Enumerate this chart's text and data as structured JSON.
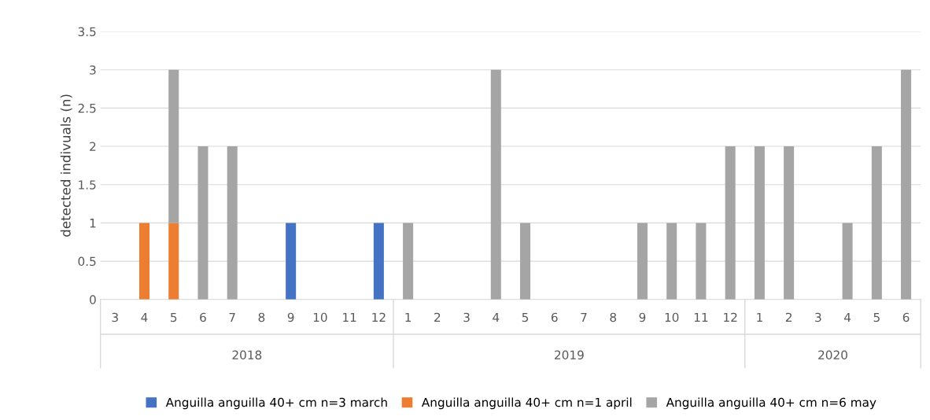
{
  "chart_data": {
    "type": "bar",
    "stacked": true,
    "ylabel": "detected indivuals (n)",
    "categories": [
      "3",
      "4",
      "5",
      "6",
      "7",
      "8",
      "9",
      "10",
      "11",
      "12",
      "1",
      "2",
      "3",
      "4",
      "5",
      "6",
      "7",
      "8",
      "9",
      "10",
      "11",
      "12",
      "1",
      "2",
      "3",
      "4",
      "5",
      "6"
    ],
    "annotations": [
      "2018",
      "2019",
      "2020"
    ],
    "series": [
      {
        "name": "Anguilla anguilla 40+ cm n=3 march",
        "color": "#4472c4",
        "values": [
          null,
          null,
          null,
          null,
          null,
          null,
          1,
          null,
          null,
          1,
          null,
          null,
          null,
          null,
          null,
          null,
          null,
          null,
          null,
          null,
          null,
          null,
          null,
          null,
          null,
          null,
          null,
          null
        ]
      },
      {
        "name": "Anguilla anguilla 40+ cm n=1 april",
        "color": "#ed7d31",
        "values": [
          null,
          1,
          1,
          null,
          null,
          null,
          null,
          null,
          null,
          null,
          null,
          null,
          null,
          null,
          null,
          null,
          null,
          null,
          null,
          null,
          null,
          null,
          null,
          null,
          null,
          null,
          null,
          null
        ]
      },
      {
        "name": "Anguilla anguilla 40+ cm n=6 may",
        "color": "#a5a5a5",
        "values": [
          null,
          null,
          2,
          2,
          2,
          null,
          null,
          null,
          null,
          null,
          1,
          null,
          null,
          3,
          1,
          null,
          null,
          null,
          1,
          1,
          1,
          2,
          2,
          2,
          null,
          1,
          2,
          3
        ]
      }
    ],
    "ylim": [
      0,
      3.5
    ],
    "yticks": [
      0,
      0.5,
      1,
      1.5,
      2,
      2.5,
      3,
      3.5
    ],
    "grid": "y",
    "legend": "bottom"
  }
}
